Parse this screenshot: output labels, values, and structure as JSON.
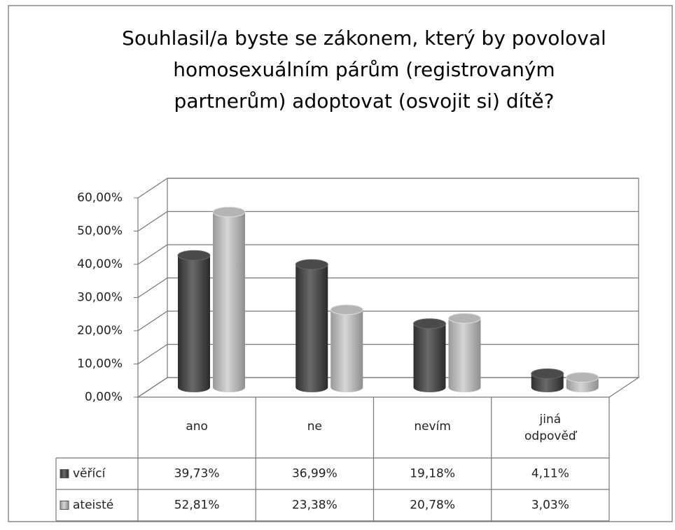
{
  "chart_data": {
    "type": "bar",
    "title": "Souhlasil/a byste se zákonem, který by povoloval homosexuálním párům (registrovaným partnerům) adoptovat (osvojit si) dítě?",
    "categories": [
      "ano",
      "ne",
      "nevím",
      "jiná odpověď"
    ],
    "series": [
      {
        "name": "věřící",
        "color": "#4a4a4a",
        "values": [
          39.73,
          36.99,
          19.18,
          4.11
        ],
        "value_labels": [
          "39,73%",
          "36,99%",
          "19,18%",
          "4,11%"
        ]
      },
      {
        "name": "ateisté",
        "color": "#b4b4b4",
        "values": [
          52.81,
          23.38,
          20.78,
          3.03
        ],
        "value_labels": [
          "52,81%",
          "23,38%",
          "20,78%",
          "3,03%"
        ]
      }
    ],
    "ylim": [
      0,
      60
    ],
    "yticks": [
      {
        "value": 0,
        "label": "0,00%"
      },
      {
        "value": 10,
        "label": "10,00%"
      },
      {
        "value": 20,
        "label": "20,00%"
      },
      {
        "value": 30,
        "label": "30,00%"
      },
      {
        "value": 40,
        "label": "40,00%"
      },
      {
        "value": 50,
        "label": "50,00%"
      },
      {
        "value": 60,
        "label": "60,00%"
      }
    ],
    "grid": true
  }
}
